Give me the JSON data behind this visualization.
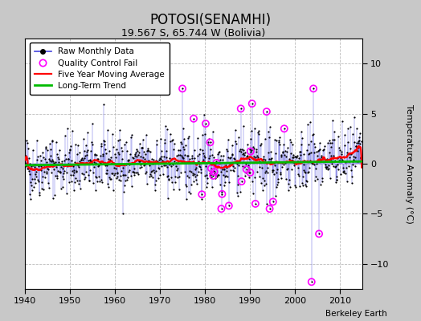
{
  "title": "POTOSI(SENAMHI)",
  "subtitle": "19.567 S, 65.744 W (Bolivia)",
  "ylabel": "Temperature Anomaly (°C)",
  "watermark": "Berkeley Earth",
  "xlim": [
    1940,
    2015
  ],
  "ylim": [
    -12.5,
    12.5
  ],
  "yticks": [
    -10,
    -5,
    0,
    5,
    10
  ],
  "xticks": [
    1940,
    1950,
    1960,
    1970,
    1980,
    1990,
    2000,
    2010
  ],
  "fig_bg_color": "#c8c8c8",
  "plot_bg_color": "#ffffff",
  "seed": 42,
  "line_color_raw": "#4444dd",
  "dot_color_raw": "#000000",
  "qc_color": "#ff00ff",
  "ma_color": "#ff0000",
  "trend_color": "#00bb00",
  "grid_color": "#bbbbbb"
}
